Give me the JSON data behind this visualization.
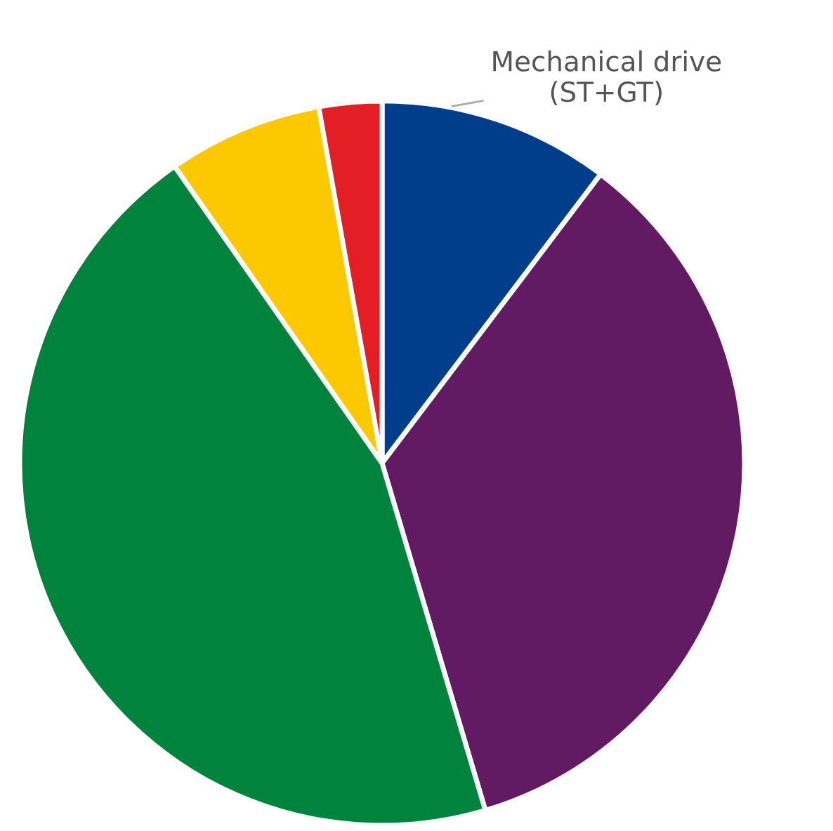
{
  "chart_data": {
    "type": "pie",
    "categories": [
      "Mechanical drive\n(ST+GT)",
      null,
      null,
      null,
      null
    ],
    "values": [
      10.3,
      35.1,
      44.9,
      6.9,
      2.8
    ],
    "colors": [
      "#003d8a",
      "#621a63",
      "#00843d",
      "#fcc800",
      "#e31e24"
    ],
    "legend": false
  }
}
